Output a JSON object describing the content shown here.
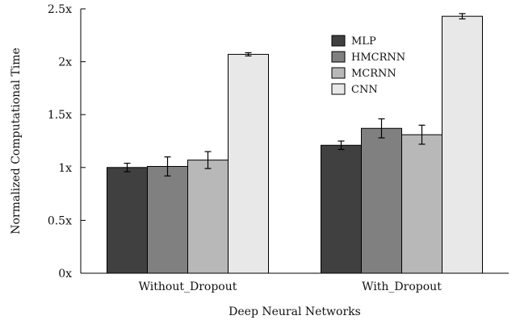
{
  "chart_data": {
    "type": "bar",
    "title": "",
    "xlabel": "Deep Neural Networks",
    "ylabel": "Normalized Computational Time",
    "categories": [
      "Without_Dropout",
      "With_Dropout"
    ],
    "ylim": [
      0,
      2.5
    ],
    "yticks": [
      {
        "value": 0,
        "label": "0x"
      },
      {
        "value": 0.5,
        "label": "0.5x"
      },
      {
        "value": 1,
        "label": "1x"
      },
      {
        "value": 1.5,
        "label": "1.5x"
      },
      {
        "value": 2,
        "label": "2x"
      },
      {
        "value": 2.5,
        "label": "2.5x"
      }
    ],
    "legend_position": "top-right",
    "grid": false,
    "series": [
      {
        "name": "MLP",
        "color": "#404040",
        "values": [
          1.0,
          1.21
        ],
        "errors": [
          0.04,
          0.04
        ]
      },
      {
        "name": "HMCRNN",
        "color": "#808080",
        "values": [
          1.01,
          1.37
        ],
        "errors": [
          0.09,
          0.09
        ]
      },
      {
        "name": "MCRNN",
        "color": "#b8b8b8",
        "values": [
          1.07,
          1.31
        ],
        "errors": [
          0.08,
          0.09
        ]
      },
      {
        "name": "CNN",
        "color": "#e8e8e8",
        "values": [
          2.07,
          2.43
        ],
        "errors": [
          0.015,
          0.025
        ]
      }
    ]
  }
}
